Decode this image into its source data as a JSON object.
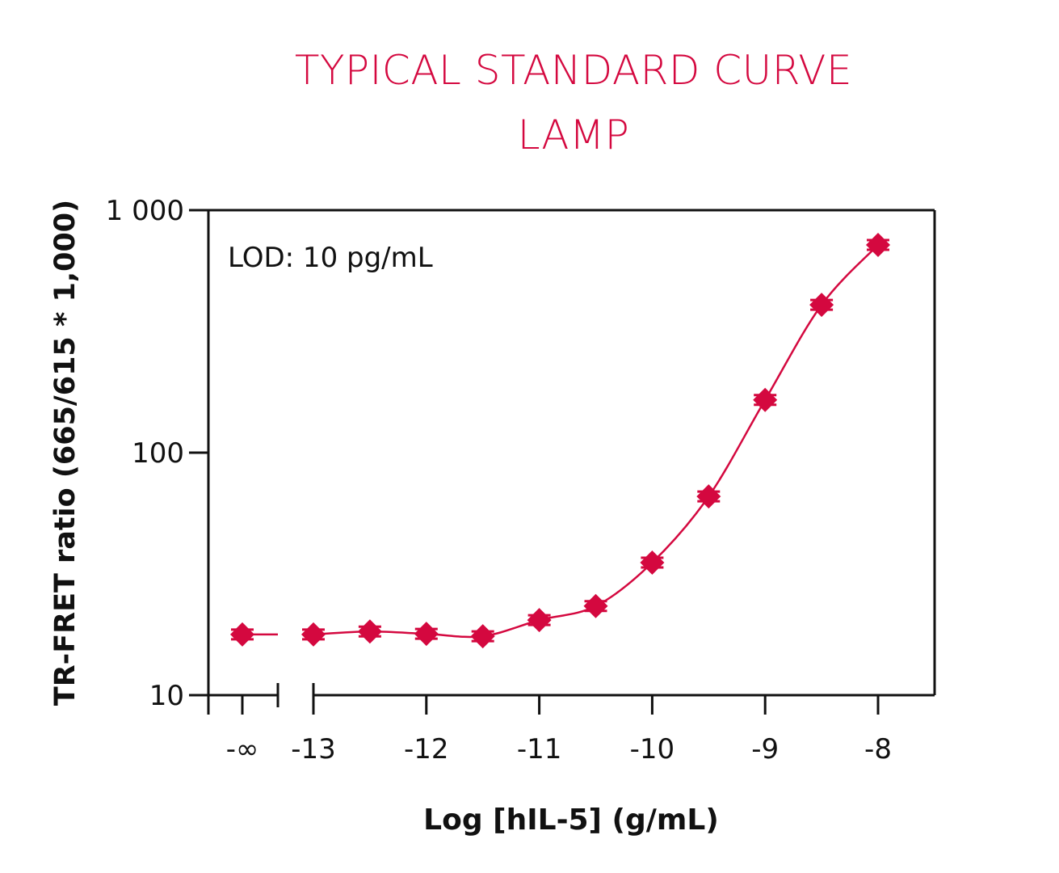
{
  "chart_data": {
    "type": "scatter",
    "title": "TYPICAL STANDARD CURVE",
    "subtitle": "LAMP",
    "xlabel": "Log [hIL-5] (g/mL)",
    "ylabel": "TR-FRET ratio (665/615 * 1,000)",
    "annotation": "LOD: 10 pg/mL",
    "y_scale": "log",
    "ylim": [
      10,
      1000
    ],
    "xlim": [
      -13.5,
      -7.5
    ],
    "x_ticks": [
      "-∞",
      "-13",
      "-12",
      "-11",
      "-10",
      "-9",
      "-8"
    ],
    "y_ticks": [
      "10",
      "100",
      "1 000"
    ],
    "x_axis_break": true,
    "grid": false,
    "marker": "diamond",
    "color": "#d4083f",
    "points": [
      {
        "x": "-∞",
        "y": 17.8
      },
      {
        "x": -13,
        "y": 17.8
      },
      {
        "x": -12.5,
        "y": 18.3
      },
      {
        "x": -12,
        "y": 17.9
      },
      {
        "x": -11.5,
        "y": 17.5
      },
      {
        "x": -11,
        "y": 20.4
      },
      {
        "x": -10.5,
        "y": 23.3
      },
      {
        "x": -10,
        "y": 35.2
      },
      {
        "x": -9.5,
        "y": 66
      },
      {
        "x": -9,
        "y": 165
      },
      {
        "x": -8.5,
        "y": 407
      },
      {
        "x": -8,
        "y": 719
      }
    ]
  }
}
